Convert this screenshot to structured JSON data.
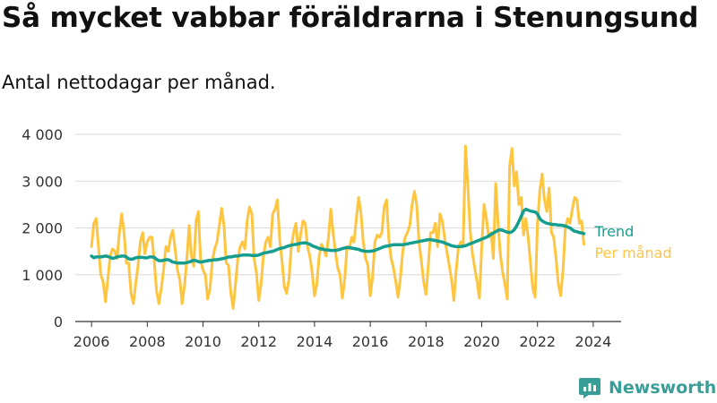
{
  "header": {
    "title": "Så mycket vabbar föräldrarna i Stenungsund",
    "subtitle": "Antal nettodagar per månad."
  },
  "brand": {
    "name": "Newsworthy",
    "color": "#3a9e98",
    "icon": "newsworthy-logo-icon"
  },
  "colors": {
    "monthly": "#fec540",
    "trend": "#159e8f",
    "grid": "#d9d9d9",
    "axis": "#333333"
  },
  "chart_data": {
    "type": "line",
    "title": "Så mycket vabbar föräldrarna i Stenungsund",
    "subtitle": "Antal nettodagar per månad.",
    "xlabel": "",
    "ylabel": "",
    "x_start": "2006-01",
    "x_ticks": [
      "2006",
      "2008",
      "2010",
      "2012",
      "2014",
      "2016",
      "2018",
      "2020",
      "2022",
      "2024"
    ],
    "y_ticks": [
      0,
      1000,
      2000,
      3000,
      4000
    ],
    "y_tick_labels": [
      "0",
      "1 000",
      "2 000",
      "3 000",
      "4 000"
    ],
    "xlim": [
      "2005-06",
      "2025-01"
    ],
    "ylim": [
      0,
      4000
    ],
    "grid": true,
    "legend": "direct labels at line ends",
    "series": [
      {
        "name": "Per månad",
        "color": "#fec540",
        "values": [
          1600,
          2100,
          2200,
          1600,
          1000,
          850,
          420,
          900,
          1400,
          1550,
          1500,
          1350,
          1900,
          2300,
          1900,
          1250,
          1250,
          600,
          380,
          800,
          1200,
          1700,
          1900,
          1450,
          1700,
          1800,
          1800,
          1300,
          650,
          380,
          700,
          1100,
          1600,
          1500,
          1800,
          1950,
          1550,
          1100,
          900,
          380,
          750,
          1300,
          2050,
          1400,
          1180,
          2150,
          2350,
          1300,
          1100,
          1000,
          480,
          700,
          1300,
          1550,
          1700,
          2050,
          2420,
          2050,
          1250,
          1200,
          600,
          280,
          800,
          1350,
          1600,
          1700,
          1550,
          2150,
          2450,
          2300,
          1350,
          1050,
          450,
          800,
          1400,
          1700,
          1800,
          1600,
          2300,
          2400,
          2600,
          1750,
          1300,
          750,
          600,
          900,
          1600,
          1900,
          2100,
          1500,
          1850,
          2150,
          2100,
          1600,
          1400,
          1050,
          550,
          800,
          1400,
          1650,
          1550,
          1400,
          1800,
          2400,
          1900,
          1500,
          1150,
          1000,
          500,
          900,
          1600,
          1550,
          1800,
          1700,
          2200,
          2650,
          2300,
          1700,
          1350,
          1200,
          550,
          950,
          1700,
          1850,
          1800,
          1900,
          2450,
          2600,
          1750,
          1350,
          1150,
          850,
          520,
          950,
          1500,
          1800,
          1900,
          2050,
          2500,
          2780,
          2500,
          1700,
          1300,
          850,
          580,
          1200,
          1900,
          1900,
          2100,
          1600,
          2300,
          2150,
          1800,
          1500,
          1200,
          900,
          450,
          1100,
          1600,
          1700,
          1650,
          3750,
          2900,
          1950,
          1450,
          1150,
          850,
          500,
          1600,
          2500,
          2200,
          1800,
          1900,
          1350,
          2950,
          2100,
          1450,
          1050,
          800,
          480,
          3300,
          3700,
          2900,
          3200,
          2500,
          2650,
          1850,
          2200,
          1800,
          1250,
          700,
          520,
          2100,
          2800,
          3150,
          2600,
          2350,
          2850,
          1900,
          1800,
          1350,
          800,
          550,
          1100,
          2000,
          2200,
          2100,
          2400,
          2650,
          2600,
          2100,
          2150,
          1650
        ]
      },
      {
        "name": "Trend",
        "color": "#159e8f",
        "values": [
          1400,
          1360,
          1380,
          1380,
          1380,
          1390,
          1400,
          1390,
          1370,
          1350,
          1360,
          1380,
          1390,
          1400,
          1400,
          1380,
          1340,
          1330,
          1340,
          1360,
          1370,
          1370,
          1370,
          1360,
          1360,
          1380,
          1380,
          1370,
          1330,
          1300,
          1300,
          1310,
          1320,
          1320,
          1300,
          1270,
          1260,
          1250,
          1250,
          1250,
          1250,
          1260,
          1270,
          1290,
          1310,
          1300,
          1280,
          1270,
          1280,
          1290,
          1300,
          1310,
          1310,
          1320,
          1320,
          1330,
          1340,
          1350,
          1360,
          1380,
          1380,
          1390,
          1400,
          1400,
          1410,
          1420,
          1420,
          1420,
          1420,
          1410,
          1410,
          1410,
          1420,
          1440,
          1460,
          1470,
          1480,
          1490,
          1500,
          1520,
          1540,
          1560,
          1570,
          1580,
          1600,
          1620,
          1630,
          1640,
          1650,
          1660,
          1670,
          1680,
          1680,
          1670,
          1650,
          1620,
          1600,
          1580,
          1560,
          1550,
          1540,
          1530,
          1530,
          1520,
          1520,
          1520,
          1530,
          1540,
          1560,
          1570,
          1580,
          1580,
          1570,
          1560,
          1550,
          1540,
          1520,
          1510,
          1500,
          1500,
          1500,
          1510,
          1520,
          1540,
          1560,
          1580,
          1600,
          1610,
          1620,
          1630,
          1640,
          1640,
          1640,
          1640,
          1640,
          1650,
          1660,
          1670,
          1680,
          1690,
          1700,
          1710,
          1720,
          1730,
          1740,
          1750,
          1750,
          1740,
          1730,
          1720,
          1710,
          1700,
          1680,
          1660,
          1640,
          1620,
          1610,
          1600,
          1600,
          1600,
          1610,
          1620,
          1640,
          1660,
          1680,
          1700,
          1720,
          1740,
          1760,
          1780,
          1800,
          1830,
          1860,
          1890,
          1920,
          1950,
          1960,
          1950,
          1930,
          1910,
          1900,
          1920,
          1960,
          2040,
          2140,
          2250,
          2360,
          2400,
          2380,
          2360,
          2350,
          2340,
          2300,
          2200,
          2150,
          2120,
          2100,
          2090,
          2080,
          2070,
          2070,
          2060,
          2060,
          2050,
          2040,
          2020,
          2000,
          1960,
          1930,
          1920,
          1900,
          1890,
          1880
        ]
      }
    ]
  }
}
